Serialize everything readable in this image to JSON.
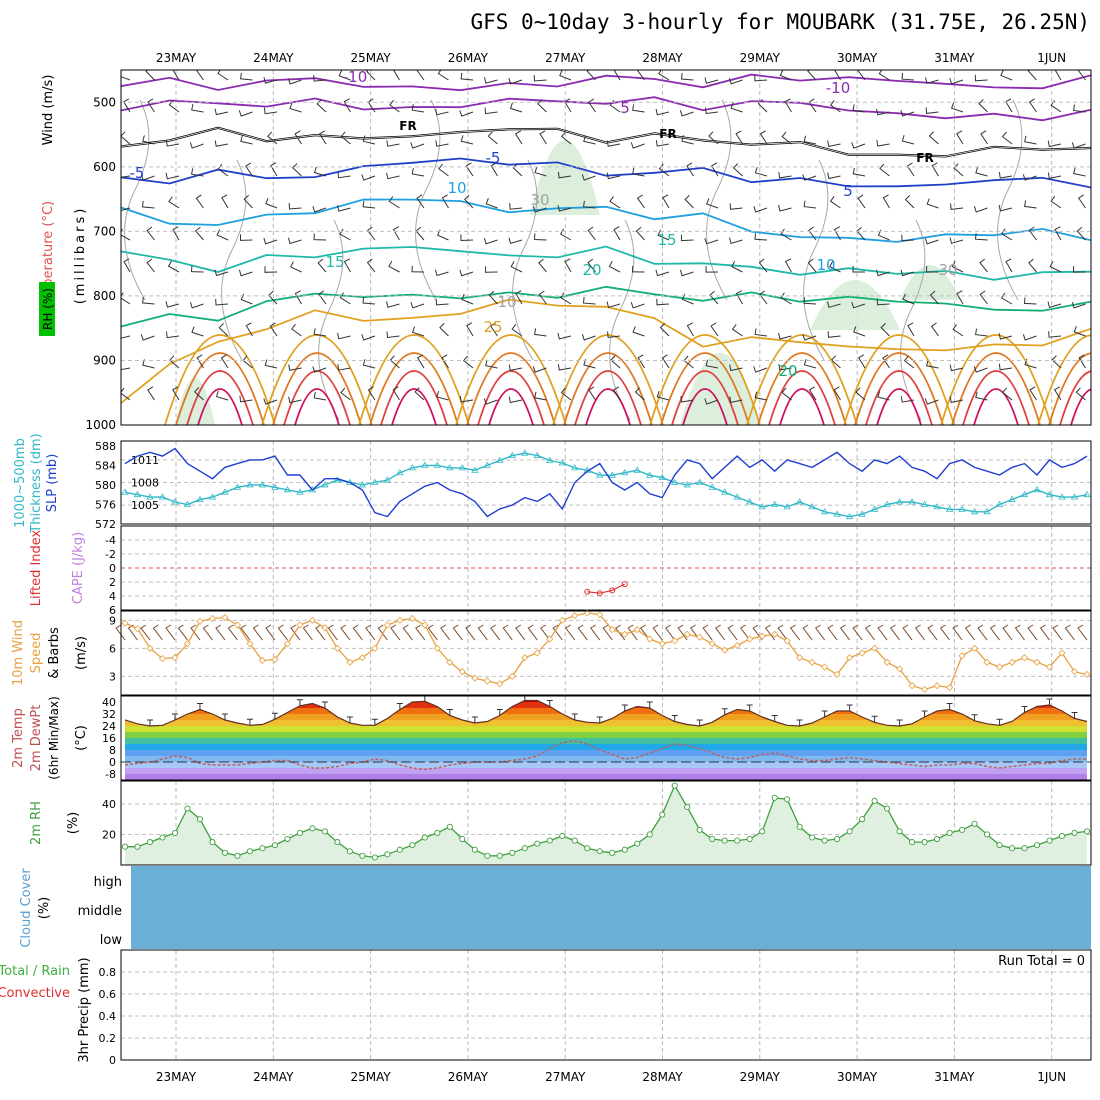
{
  "title": "GFS 0~10day 3-hourly for MOUBARK (31.75E, 26.25N)",
  "dates": [
    "23MAY",
    "24MAY",
    "25MAY",
    "26MAY",
    "27MAY",
    "28MAY",
    "29MAY",
    "30MAY",
    "31MAY",
    "1JUN"
  ],
  "colors": {
    "temperature": "#e8a0a0",
    "wind_label": "#000000",
    "rh_label": "#00aa00",
    "slp": "#1f3fcf",
    "thickness": "#30b8c8",
    "lifted_index": "#e03030",
    "cape": "#c080e0",
    "wind10": "#e8a040",
    "barb": "#7a4a2a",
    "rh2m": "#40a040",
    "cloud": "#6baed6",
    "precip_total": "#40b040",
    "precip_conv": "#e03030"
  },
  "chart_data": [
    {
      "panel": "upper-air",
      "type": "contour",
      "ylabel": [
        "Temperature (°C)",
        "Wind (m/s)",
        "RH (%)",
        "(millibars)"
      ],
      "y_ticks": [
        "500",
        "600",
        "700",
        "800",
        "900",
        "1000"
      ],
      "y_range": [
        450,
        1000
      ],
      "contour_labels": [
        "-10",
        "-10",
        "5",
        "-5",
        "FR",
        "FR",
        "FR",
        "5",
        "-5",
        "10",
        "10",
        "15",
        "15",
        "20",
        "20",
        "25",
        "30",
        "30",
        "10"
      ],
      "isotherms": [
        {
          "level": -10,
          "color": "#8a2bb0",
          "p": [
            475,
            474,
            472,
            470,
            468,
            467,
            468,
            470,
            471,
            468,
            466
          ]
        },
        {
          "level": -5,
          "color": "#8a2bb0",
          "p": [
            505,
            503,
            500,
            498,
            501,
            503,
            505,
            510,
            512,
            515,
            520
          ]
        },
        {
          "level": 0,
          "color": "#000000",
          "p": [
            560,
            548,
            548,
            548,
            551,
            555,
            560,
            568,
            572,
            575,
            572
          ]
        },
        {
          "level": 5,
          "color": "#2040c8",
          "p": [
            615,
            612,
            607,
            598,
            600,
            605,
            610,
            615,
            625,
            630,
            625
          ]
        },
        {
          "level": 10,
          "color": "#1fa0e0",
          "p": [
            670,
            690,
            665,
            660,
            665,
            660,
            680,
            700,
            720,
            710,
            705
          ]
        },
        {
          "level": 15,
          "color": "#20b8a8",
          "p": [
            740,
            755,
            742,
            730,
            728,
            730,
            750,
            760,
            775,
            770,
            760
          ]
        },
        {
          "level": 20,
          "color": "#10b070",
          "p": [
            850,
            830,
            805,
            795,
            790,
            795,
            800,
            810,
            815,
            812,
            815
          ]
        },
        {
          "level": 25,
          "color": "#e0a020",
          "p": [
            960,
            870,
            830,
            825,
            810,
            820,
            870,
            880,
            880,
            870,
            860
          ]
        }
      ]
    },
    {
      "panel": "slp-thickness",
      "type": "line",
      "ylabel": [
        "1000~500mb",
        "Thickness (dm)",
        "SLP (mb)"
      ],
      "left_ticks": [
        "572",
        "576",
        "580",
        "584",
        "588"
      ],
      "right_ticks": [
        "1005",
        "1008",
        "1011"
      ],
      "series": [
        {
          "name": "SLP (mb)",
          "axis": "right",
          "ylim": [
            1002.5,
            1013.5
          ],
          "values": [
            1010.5,
            1011.5,
            1012,
            1011.5,
            1012.5,
            1010.5,
            1009.5,
            1008.5,
            1010,
            1010.5,
            1011,
            1011,
            1011.5,
            1009,
            1009,
            1007,
            1008.5,
            1008.5,
            1008,
            1007,
            1004,
            1003.5,
            1005.5,
            1006.5,
            1007.5,
            1008,
            1007,
            1006.5,
            1005.5,
            1003.5,
            1004.5,
            1005,
            1006,
            1005.5,
            1006.5,
            1004.5,
            1008,
            1009.5,
            1010.5,
            1008,
            1007,
            1008,
            1006.5,
            1006,
            1009,
            1011,
            1010.5,
            1008.5,
            1010,
            1011.5,
            1010,
            1011,
            1009.5,
            1011,
            1010.5,
            1010,
            1011,
            1012,
            1010.5,
            1009.5,
            1011,
            1010.5,
            1011.5,
            1010,
            1009.5,
            1008.5,
            1010.5,
            1011,
            1010,
            1009.5,
            1009,
            1010,
            1010.5,
            1009,
            1011,
            1010,
            1010.5,
            1011.5
          ]
        },
        {
          "name": "1000~500mb Thickness (dm)",
          "axis": "left",
          "ylim": [
            572,
            589
          ],
          "values": [
            578.5,
            578,
            577.5,
            577.5,
            576.5,
            576,
            577,
            577.5,
            578.5,
            579.5,
            580,
            580,
            579.5,
            579,
            578.5,
            579,
            580,
            581,
            580.5,
            580,
            580.5,
            581,
            582.5,
            583.5,
            584,
            584,
            583.5,
            583.5,
            583,
            584,
            585,
            586,
            586.5,
            586,
            585,
            584.5,
            583.5,
            583,
            582,
            582,
            582.5,
            583,
            582,
            581.5,
            580.5,
            580,
            580.5,
            579.5,
            578.5,
            577.5,
            576.5,
            575.5,
            576,
            575.5,
            576.5,
            575.5,
            574.5,
            574,
            573.5,
            574,
            575,
            576,
            576.5,
            576.5,
            576,
            575.5,
            575,
            575,
            574.5,
            574.5,
            576,
            577,
            578,
            579,
            578,
            577.5,
            577.5,
            578
          ]
        }
      ]
    },
    {
      "panel": "lifted-index-cape",
      "type": "line",
      "ylabel": [
        "Lifted Index",
        "CAPE (J/kg)"
      ],
      "left_ticks": [
        "-4",
        "-2",
        "0",
        "2",
        "4",
        "6"
      ],
      "series": [
        {
          "name": "Lifted Index",
          "ylim": [
            6,
            -6
          ],
          "values": [
            null,
            null,
            null,
            null,
            null,
            null,
            null,
            null,
            null,
            null,
            null,
            null,
            null,
            null,
            null,
            null,
            null,
            null,
            null,
            null,
            null,
            null,
            null,
            null,
            null,
            null,
            null,
            null,
            null,
            null,
            null,
            null,
            null,
            null,
            null,
            null,
            null,
            3.4,
            3.6,
            3.2,
            2.3,
            null,
            null,
            null,
            null,
            null,
            null,
            null,
            null,
            null,
            null,
            null,
            null,
            null,
            null,
            null,
            null,
            null,
            null,
            null,
            null,
            null,
            null,
            null,
            null,
            null,
            null,
            null,
            null,
            null,
            null,
            null,
            null,
            null,
            null,
            null,
            null,
            null
          ]
        }
      ]
    },
    {
      "panel": "wind10m",
      "type": "line",
      "ylabel": [
        "10m Wind",
        "Speed",
        "& Barbs",
        "(m/s)"
      ],
      "left_ticks": [
        "3",
        "6",
        "9"
      ],
      "series": [
        {
          "name": "10m Wind Speed (m/s)",
          "ylim": [
            1,
            10
          ],
          "values": [
            8.7,
            8.1,
            6.0,
            4.9,
            5.0,
            6.5,
            8.9,
            9.2,
            9.3,
            8.5,
            6.5,
            4.7,
            4.8,
            6.5,
            8.5,
            9.0,
            8.2,
            6.0,
            4.5,
            5.0,
            6.0,
            8.5,
            9.0,
            9.2,
            8.5,
            6.0,
            4.5,
            3.5,
            2.8,
            2.5,
            2.2,
            3.0,
            5.0,
            5.5,
            7.0,
            9.0,
            9.5,
            9.8,
            9.6,
            8.0,
            7.5,
            8.0,
            7.0,
            6.5,
            6.8,
            7.5,
            7.2,
            6.5,
            5.8,
            6.3,
            7.0,
            7.3,
            7.5,
            6.8,
            5.0,
            4.5,
            4.0,
            3.2,
            5.0,
            5.5,
            6.0,
            4.5,
            3.8,
            2.0,
            1.6,
            2.0,
            1.8,
            5.2,
            6.0,
            4.5,
            4.0,
            4.5,
            5.0,
            4.5,
            4.0,
            5.5,
            3.5,
            3.2
          ]
        }
      ]
    },
    {
      "panel": "temperature2m",
      "type": "area",
      "ylabel": [
        "2m Temp",
        "2m DewPt",
        "(6hr Min/Max)",
        "(°C)"
      ],
      "left_ticks": [
        "-8",
        "0",
        "8",
        "16",
        "24",
        "32",
        "40"
      ],
      "ylim": [
        -12,
        44
      ],
      "series": [
        {
          "name": "2m Temp",
          "values": [
            28,
            25.5,
            24,
            24.5,
            28,
            32,
            35,
            32,
            28,
            26,
            24.5,
            25,
            28.5,
            33,
            37.5,
            39,
            36,
            30,
            26,
            24.5,
            24.5,
            29,
            35,
            40,
            40.5,
            37,
            31,
            28,
            26,
            27,
            31,
            37,
            41,
            41,
            37,
            32,
            28,
            26.5,
            26,
            29,
            34,
            37,
            36,
            31,
            27,
            25,
            24,
            26.5,
            31.5,
            35,
            34,
            30,
            27,
            24.5,
            24,
            26,
            30,
            34,
            34,
            30,
            26.5,
            24.5,
            24,
            25.5,
            30,
            34,
            35,
            32,
            27.5,
            25.5,
            24.5,
            27,
            33,
            37,
            38,
            34,
            29,
            27
          ]
        },
        {
          "name": "2m DewPt",
          "values": [
            -2,
            -1,
            0,
            2,
            4,
            3,
            -1,
            -2,
            -2,
            -2,
            -1,
            0,
            1,
            1,
            -2,
            -4,
            -4,
            -3,
            -1,
            0,
            2,
            1,
            -2,
            -4,
            -5,
            -4,
            -2,
            -1,
            0,
            0,
            0,
            1,
            2,
            4,
            9,
            13,
            14,
            12,
            8,
            5,
            2,
            3,
            6,
            9,
            12,
            11,
            9,
            6,
            3,
            2,
            3,
            5,
            6,
            4,
            2,
            1,
            1,
            2,
            3,
            2,
            1,
            0,
            -1,
            -2,
            -3,
            -2,
            -2,
            -1,
            -1,
            -3,
            -4,
            -3,
            -2,
            -1,
            -1,
            1,
            2,
            2
          ]
        }
      ]
    },
    {
      "panel": "rh2m",
      "type": "area",
      "ylabel": [
        "2m RH",
        "(%)"
      ],
      "left_ticks": [
        "20",
        "40"
      ],
      "ylim": [
        0,
        55
      ],
      "series": [
        {
          "name": "2m RH (%)",
          "values": [
            12,
            12,
            15,
            18,
            21,
            37,
            30,
            15,
            8,
            6,
            9,
            11,
            13,
            17,
            21,
            24,
            22,
            15,
            9,
            6,
            5,
            7,
            10,
            13,
            18,
            21,
            25,
            17,
            10,
            6,
            6,
            8,
            11,
            14,
            16,
            19,
            16,
            11,
            9,
            8,
            10,
            14,
            20,
            33,
            52,
            38,
            23,
            17,
            16,
            16,
            17,
            22,
            44,
            43,
            25,
            18,
            16,
            17,
            22,
            30,
            42,
            37,
            22,
            15,
            15,
            17,
            21,
            23,
            27,
            20,
            13,
            11,
            11,
            13,
            16,
            19,
            21,
            22
          ]
        }
      ]
    },
    {
      "panel": "cloud-cover",
      "type": "heatmap",
      "ylabel": [
        "Cloud Cover",
        "(%)"
      ],
      "levels": [
        "high",
        "middle",
        "low"
      ],
      "values": [
        0,
        0,
        0
      ]
    },
    {
      "panel": "precip",
      "type": "bar",
      "ylabel": [
        "Total / Rain",
        "Convective",
        "3hr Precip (mm)"
      ],
      "left_ticks": [
        "0",
        "0.2",
        "0.4",
        "0.6",
        "0.8"
      ],
      "ylim": [
        0,
        1
      ],
      "run_total": "Run Total = 0",
      "values": []
    }
  ]
}
